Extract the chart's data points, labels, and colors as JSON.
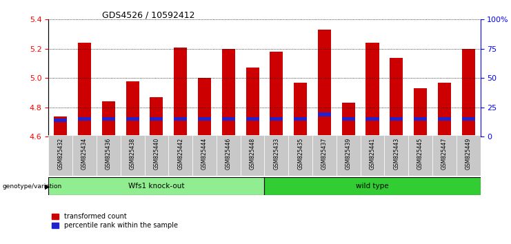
{
  "title": "GDS4526 / 10592412",
  "samples": [
    "GSM825432",
    "GSM825434",
    "GSM825436",
    "GSM825438",
    "GSM825440",
    "GSM825442",
    "GSM825444",
    "GSM825446",
    "GSM825448",
    "GSM825433",
    "GSM825435",
    "GSM825437",
    "GSM825439",
    "GSM825441",
    "GSM825443",
    "GSM825445",
    "GSM825447",
    "GSM825449"
  ],
  "transformed_counts": [
    4.74,
    5.24,
    4.84,
    4.98,
    4.87,
    5.21,
    5.0,
    5.2,
    5.07,
    5.18,
    4.97,
    5.33,
    4.83,
    5.24,
    5.14,
    4.93,
    4.97,
    5.2
  ],
  "blue_bar_bottoms": [
    4.7,
    4.71,
    4.71,
    4.71,
    4.71,
    4.71,
    4.71,
    4.71,
    4.71,
    4.71,
    4.71,
    4.74,
    4.71,
    4.71,
    4.71,
    4.71,
    4.71,
    4.71
  ],
  "groups": [
    {
      "label": "Wfs1 knock-out",
      "start": 0,
      "end": 9,
      "color": "#90EE90"
    },
    {
      "label": "wild type",
      "start": 9,
      "end": 18,
      "color": "#32CD32"
    }
  ],
  "ylim_lo": 4.6,
  "ylim_hi": 5.4,
  "yticks": [
    4.6,
    4.8,
    5.0,
    5.2,
    5.4
  ],
  "right_ytick_vals": [
    0,
    25,
    50,
    75,
    100
  ],
  "right_ytick_labels": [
    "0",
    "25",
    "50",
    "75",
    "100%"
  ],
  "bar_color": "#CC0000",
  "percentile_color": "#2222CC",
  "bar_width": 0.55,
  "blue_bar_height": 0.025
}
